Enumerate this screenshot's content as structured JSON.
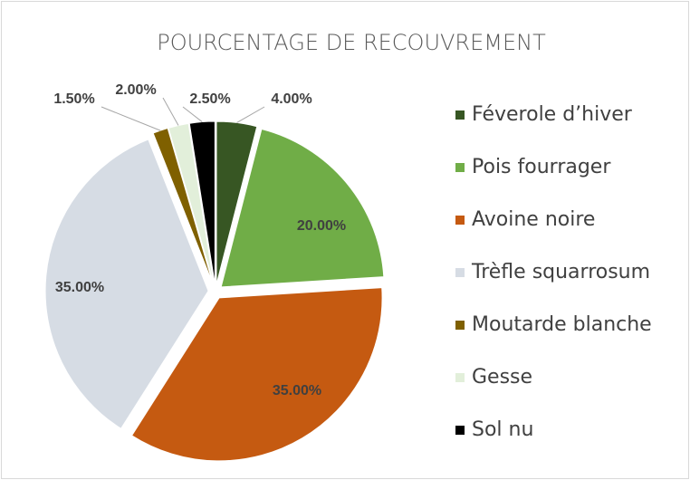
{
  "chart_data": {
    "type": "pie",
    "title": "POURCENTAGE DE RECOUVREMENT",
    "categories": [
      "Féverole d’hiver",
      "Pois fourrager",
      "Avoine noire",
      "Trèfle squarrosum",
      "Moutarde blanche",
      "Gesse",
      "Sol nu"
    ],
    "values": [
      4,
      20,
      35,
      35,
      1.5,
      2,
      2.5
    ],
    "value_labels": [
      "4.00%",
      "20.00%",
      "35.00%",
      "35.00%",
      "1.50%",
      "2.00%",
      "2.50%"
    ],
    "colors": [
      "#375623",
      "#70ad47",
      "#c55a11",
      "#d6dce4",
      "#7f6000",
      "#e2efda",
      "#000000"
    ],
    "legend": "right"
  }
}
